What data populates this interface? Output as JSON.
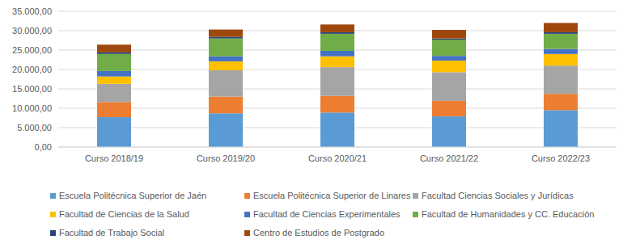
{
  "chart_data": {
    "type": "bar",
    "stacked": true,
    "grid": true,
    "legend": "bottom",
    "categories": [
      "Curso 2018/19",
      "Curso 2019/20",
      "Curso 2020/21",
      "Curso 2021/22",
      "Curso 2022/23"
    ],
    "ylim": [
      0,
      35000
    ],
    "yticks": [
      {
        "value": 0,
        "label": "0,00"
      },
      {
        "value": 5000,
        "label": "5.000,00"
      },
      {
        "value": 10000,
        "label": "10.000,00"
      },
      {
        "value": 15000,
        "label": "15.000,00"
      },
      {
        "value": 20000,
        "label": "20.000,00"
      },
      {
        "value": 25000,
        "label": "25.000,00"
      },
      {
        "value": 30000,
        "label": "30.000,00"
      },
      {
        "value": 35000,
        "label": "35.000,00"
      }
    ],
    "series": [
      {
        "name": "Escuela Politécnica Superior de Jaén",
        "color": "#5b9bd5",
        "values": [
          7700,
          8700,
          8900,
          7900,
          9500
        ]
      },
      {
        "name": "Escuela Politécnica Superior de Linares",
        "color": "#ed7d31",
        "values": [
          3900,
          4300,
          4300,
          4000,
          4200
        ]
      },
      {
        "name": "Facultad Ciencias Sociales y Jurídicas",
        "color": "#a5a5a5",
        "values": [
          4700,
          6800,
          7400,
          7400,
          7300
        ]
      },
      {
        "name": "Facultad de Ciencias de la Salud",
        "color": "#ffc000",
        "values": [
          1900,
          2300,
          2800,
          3000,
          3000
        ]
      },
      {
        "name": "Facultad de Ciencias Experimentales",
        "color": "#4472c4",
        "values": [
          1400,
          1300,
          1400,
          1200,
          1300
        ]
      },
      {
        "name": "Facultad de Humanidades y CC. Educación",
        "color": "#70ad47",
        "values": [
          4400,
          4600,
          4400,
          4200,
          3900
        ]
      },
      {
        "name": "Facultad de Trabajo Social",
        "color": "#264478",
        "values": [
          400,
          400,
          400,
          300,
          400
        ]
      },
      {
        "name": "Centro de Estudios de Postgrado",
        "color": "#9e480e",
        "values": [
          2000,
          1900,
          2000,
          2200,
          2400
        ]
      }
    ]
  }
}
